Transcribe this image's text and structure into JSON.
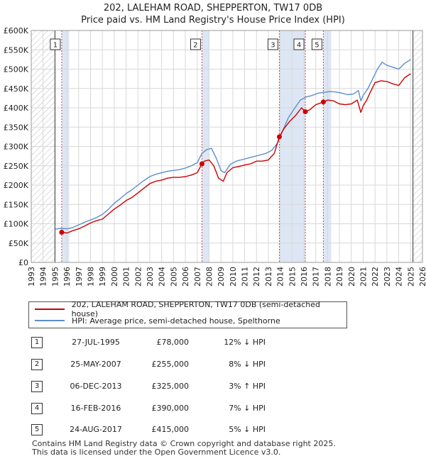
{
  "title_line1": "202, LALEHAM ROAD, SHEPPERTON, TW17 0DB",
  "title_line2": "Price paid vs. HM Land Registry's House Price Index (HPI)",
  "colors": {
    "price": "#cc0000",
    "hpi": "#5b8fcc",
    "band": "#dde6f4",
    "hatch": "#bbbbbb",
    "event": "#dd4444"
  },
  "legend": {
    "price_label": "202, LALEHAM ROAD, SHEPPERTON, TW17 0DB (semi-detached house)",
    "hpi_label": "HPI: Average price, semi-detached house, Spelthorne"
  },
  "sales": [
    {
      "num": "1",
      "date": "27-JUL-1995",
      "price": "£78,000",
      "hpi": "12% ↓ HPI"
    },
    {
      "num": "2",
      "date": "25-MAY-2007",
      "price": "£255,000",
      "hpi": "8% ↓ HPI"
    },
    {
      "num": "3",
      "date": "06-DEC-2013",
      "price": "£325,000",
      "hpi": "3% ↑ HPI"
    },
    {
      "num": "4",
      "date": "16-FEB-2016",
      "price": "£390,000",
      "hpi": "7% ↓ HPI"
    },
    {
      "num": "5",
      "date": "24-AUG-2017",
      "price": "£415,000",
      "hpi": "5% ↓ HPI"
    }
  ],
  "footer_line1": "Contains HM Land Registry data © Crown copyright and database right 2025.",
  "footer_line2": "This data is licensed under the Open Government Licence v3.0.",
  "chart_data": {
    "type": "line",
    "xlim": [
      1993,
      2026
    ],
    "ylim": [
      0,
      600000
    ],
    "x_ticks": [
      1993,
      1994,
      1995,
      1996,
      1997,
      1998,
      1999,
      2000,
      2001,
      2002,
      2003,
      2004,
      2005,
      2006,
      2007,
      2008,
      2009,
      2010,
      2011,
      2012,
      2013,
      2014,
      2015,
      2016,
      2017,
      2018,
      2019,
      2020,
      2021,
      2022,
      2023,
      2024,
      2025,
      2026
    ],
    "y_ticks": [
      0,
      50000,
      100000,
      150000,
      200000,
      250000,
      300000,
      350000,
      400000,
      450000,
      500000,
      550000,
      600000
    ],
    "y_tick_labels": [
      "£0",
      "£50K",
      "£100K",
      "£150K",
      "£200K",
      "£250K",
      "£300K",
      "£350K",
      "£400K",
      "£450K",
      "£500K",
      "£550K",
      "£600K"
    ],
    "grid": true,
    "hatched_ranges": [
      [
        1993,
        1995.0
      ],
      [
        2025.2,
        2026
      ]
    ],
    "series": [
      {
        "name": "202, LALEHAM ROAD, SHEPPERTON, TW17 0DB (semi-detached house)",
        "x": [
          1995.57,
          1996.0,
          1996.5,
          1997.0,
          1997.5,
          1998.0,
          1998.5,
          1999.0,
          1999.5,
          2000.0,
          2000.5,
          2001.0,
          2001.5,
          2002.0,
          2002.5,
          2003.0,
          2003.5,
          2004.0,
          2004.5,
          2005.0,
          2005.5,
          2006.0,
          2006.5,
          2007.0,
          2007.4,
          2007.6,
          2008.0,
          2008.4,
          2008.8,
          2009.2,
          2009.5,
          2010.0,
          2010.5,
          2011.0,
          2011.5,
          2012.0,
          2012.5,
          2013.0,
          2013.5,
          2013.93,
          2014.3,
          2014.8,
          2015.3,
          2015.8,
          2016.12,
          2016.5,
          2017.0,
          2017.64,
          2018.0,
          2018.5,
          2019.0,
          2019.5,
          2020.0,
          2020.5,
          2020.8,
          2021.0,
          2021.3,
          2021.6,
          2022.0,
          2022.5,
          2023.0,
          2023.5,
          2024.0,
          2024.5,
          2025.0
        ],
        "values": [
          78000,
          76000,
          82000,
          87000,
          94000,
          102000,
          108000,
          112000,
          125000,
          138000,
          148000,
          160000,
          168000,
          180000,
          192000,
          204000,
          210000,
          213000,
          218000,
          220000,
          220000,
          222000,
          226000,
          232000,
          255000,
          262000,
          265000,
          250000,
          218000,
          210000,
          232000,
          245000,
          248000,
          252000,
          255000,
          262000,
          262000,
          265000,
          282000,
          325000,
          345000,
          365000,
          380000,
          400000,
          390000,
          395000,
          408000,
          415000,
          420000,
          418000,
          410000,
          408000,
          410000,
          420000,
          388000,
          405000,
          420000,
          440000,
          465000,
          470000,
          468000,
          462000,
          458000,
          478000,
          488000
        ]
      },
      {
        "name": "HPI: Average price, semi-detached house, Spelthorne",
        "x": [
          1995.0,
          1995.5,
          1996.0,
          1996.5,
          1997.0,
          1997.5,
          1998.0,
          1998.5,
          1999.0,
          1999.5,
          2000.0,
          2000.5,
          2001.0,
          2001.5,
          2002.0,
          2002.5,
          2003.0,
          2003.5,
          2004.0,
          2004.5,
          2005.0,
          2005.5,
          2006.0,
          2006.5,
          2007.0,
          2007.4,
          2007.8,
          2008.2,
          2008.6,
          2009.0,
          2009.3,
          2009.8,
          2010.3,
          2010.8,
          2011.3,
          2011.8,
          2012.3,
          2012.8,
          2013.3,
          2013.8,
          2014.2,
          2014.7,
          2015.2,
          2015.7,
          2016.2,
          2016.7,
          2017.2,
          2017.7,
          2018.2,
          2018.7,
          2019.2,
          2019.7,
          2020.2,
          2020.6,
          2020.8,
          2021.0,
          2021.4,
          2021.8,
          2022.2,
          2022.6,
          2023.0,
          2023.5,
          2024.0,
          2024.5,
          2025.0
        ],
        "values": [
          86000,
          88000,
          87000,
          90000,
          97000,
          104000,
          110000,
          116000,
          124000,
          137000,
          153000,
          165000,
          178000,
          188000,
          200000,
          212000,
          222000,
          228000,
          232000,
          236000,
          238000,
          240000,
          244000,
          250000,
          258000,
          282000,
          292000,
          295000,
          270000,
          238000,
          232000,
          254000,
          262000,
          266000,
          270000,
          274000,
          278000,
          282000,
          290000,
          310000,
          340000,
          375000,
          398000,
          420000,
          428000,
          432000,
          438000,
          440000,
          442000,
          441000,
          438000,
          434000,
          436000,
          445000,
          418000,
          432000,
          450000,
          475000,
          500000,
          518000,
          510000,
          505000,
          500000,
          515000,
          525000
        ]
      }
    ],
    "events": [
      {
        "label": "1",
        "x": 1995.57,
        "price": 78000
      },
      {
        "label": "2",
        "x": 2007.4,
        "price": 255000
      },
      {
        "label": "3",
        "x": 2013.93,
        "price": 325000
      },
      {
        "label": "4",
        "x": 2016.12,
        "price": 390000
      },
      {
        "label": "5",
        "x": 2017.64,
        "price": 415000
      }
    ],
    "shaded_event_bands": [
      [
        1995.57,
        1996.2
      ],
      [
        2007.4,
        2008.0
      ],
      [
        2013.93,
        2016.12
      ],
      [
        2017.64,
        2018.3
      ]
    ]
  }
}
